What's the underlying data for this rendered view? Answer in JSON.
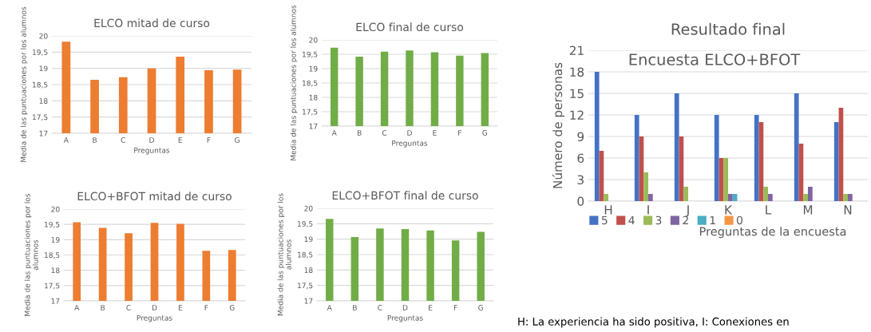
{
  "chart_data": [
    {
      "type": "bar",
      "title": "ELCO mitad de curso",
      "xlabel": "Preguntas",
      "ylabel": "Media de las puntuaciones por los alumnos",
      "categories": [
        "A",
        "B",
        "C",
        "D",
        "E",
        "F",
        "G"
      ],
      "values": [
        19.82,
        18.65,
        18.73,
        19.0,
        19.36,
        18.94,
        18.96
      ],
      "color": "#ed7d31",
      "ylim": [
        17,
        20
      ],
      "yticks": [
        17,
        {
          "value": 17.5,
          "label": "17,5"
        },
        18,
        {
          "value": 18.5,
          "label": "18,5"
        },
        19,
        {
          "value": 19.5,
          "label": "19,5"
        },
        20
      ],
      "grid": "y"
    },
    {
      "type": "bar",
      "title": "ELCO final de curso",
      "xlabel": "Preguntas",
      "ylabel": "Media de las puntuaciones por los alumnos",
      "categories": [
        "A",
        "B",
        "C",
        "D",
        "E",
        "F",
        "G"
      ],
      "values": [
        19.73,
        19.42,
        19.59,
        19.63,
        19.57,
        19.45,
        19.54
      ],
      "color": "#70ad47",
      "ylim": [
        17,
        20
      ],
      "yticks": [
        17,
        {
          "value": 17.5,
          "label": "17,5"
        },
        18,
        {
          "value": 18.5,
          "label": "18,5"
        },
        19,
        {
          "value": 19.5,
          "label": "19,5"
        },
        20
      ],
      "grid": "y"
    },
    {
      "type": "bar",
      "title": "ELCO+BFOT mitad de curso",
      "xlabel": "Preguntas",
      "ylabel": "Media de las puntuaciones por los alumnos",
      "categories": [
        "A",
        "B",
        "C",
        "D",
        "E",
        "F",
        "G"
      ],
      "values": [
        19.57,
        19.39,
        19.21,
        19.55,
        19.52,
        18.64,
        18.66
      ],
      "color": "#ed7d31",
      "ylim": [
        17,
        20
      ],
      "yticks": [
        17,
        {
          "value": 17.5,
          "label": "17,5"
        },
        18,
        {
          "value": 18.5,
          "label": "18,5"
        },
        19,
        {
          "value": 19.5,
          "label": "19,5"
        },
        20
      ],
      "grid": "y"
    },
    {
      "type": "bar",
      "title": "ELCO+BFOT final de curso",
      "xlabel": "Preguntas",
      "ylabel": "Media de las puntuaciones por los alumnos",
      "categories": [
        "A",
        "B",
        "C",
        "D",
        "E",
        "F",
        "G"
      ],
      "values": [
        19.66,
        19.07,
        19.35,
        19.33,
        19.28,
        18.96,
        19.24
      ],
      "color": "#70ad47",
      "ylim": [
        17,
        20
      ],
      "yticks": [
        17,
        {
          "value": 17.5,
          "label": "17,5"
        },
        18,
        {
          "value": 18.5,
          "label": "18,5"
        },
        19,
        {
          "value": 19.5,
          "label": "19,5"
        },
        20
      ],
      "grid": "y"
    },
    {
      "type": "bar",
      "title": "Resultado final",
      "subtitle": "Encuesta ELCO+BFOT",
      "xlabel": "Preguntas de la encuesta",
      "ylabel": "Número de personas",
      "categories": [
        "H",
        "I",
        "J",
        "K",
        "L",
        "M",
        "N"
      ],
      "series": [
        {
          "name": "5",
          "color": "#4472c4",
          "values": [
            18,
            12,
            15,
            12,
            12,
            15,
            11
          ]
        },
        {
          "name": "4",
          "color": "#c0504d",
          "values": [
            7,
            9,
            9,
            6,
            11,
            8,
            13
          ]
        },
        {
          "name": "3",
          "color": "#9bbb59",
          "values": [
            1,
            4,
            2,
            6,
            2,
            1,
            1
          ]
        },
        {
          "name": "2",
          "color": "#8064a2",
          "values": [
            0,
            1,
            0,
            1,
            1,
            2,
            1
          ]
        },
        {
          "name": "1",
          "color": "#4bacc6",
          "values": [
            0,
            0,
            0,
            1,
            0,
            0,
            0
          ]
        },
        {
          "name": "0",
          "color": "#f79646",
          "values": [
            0,
            0,
            0,
            0,
            0,
            0,
            0
          ]
        }
      ],
      "ylim": [
        0,
        21
      ],
      "yticks": [
        0,
        3,
        6,
        9,
        12,
        15,
        18,
        21
      ],
      "grid": "y",
      "legend": "bottom",
      "annotations": [
        "H: La experiencia ha sido positiva, I: Conexiones en"
      ]
    }
  ]
}
